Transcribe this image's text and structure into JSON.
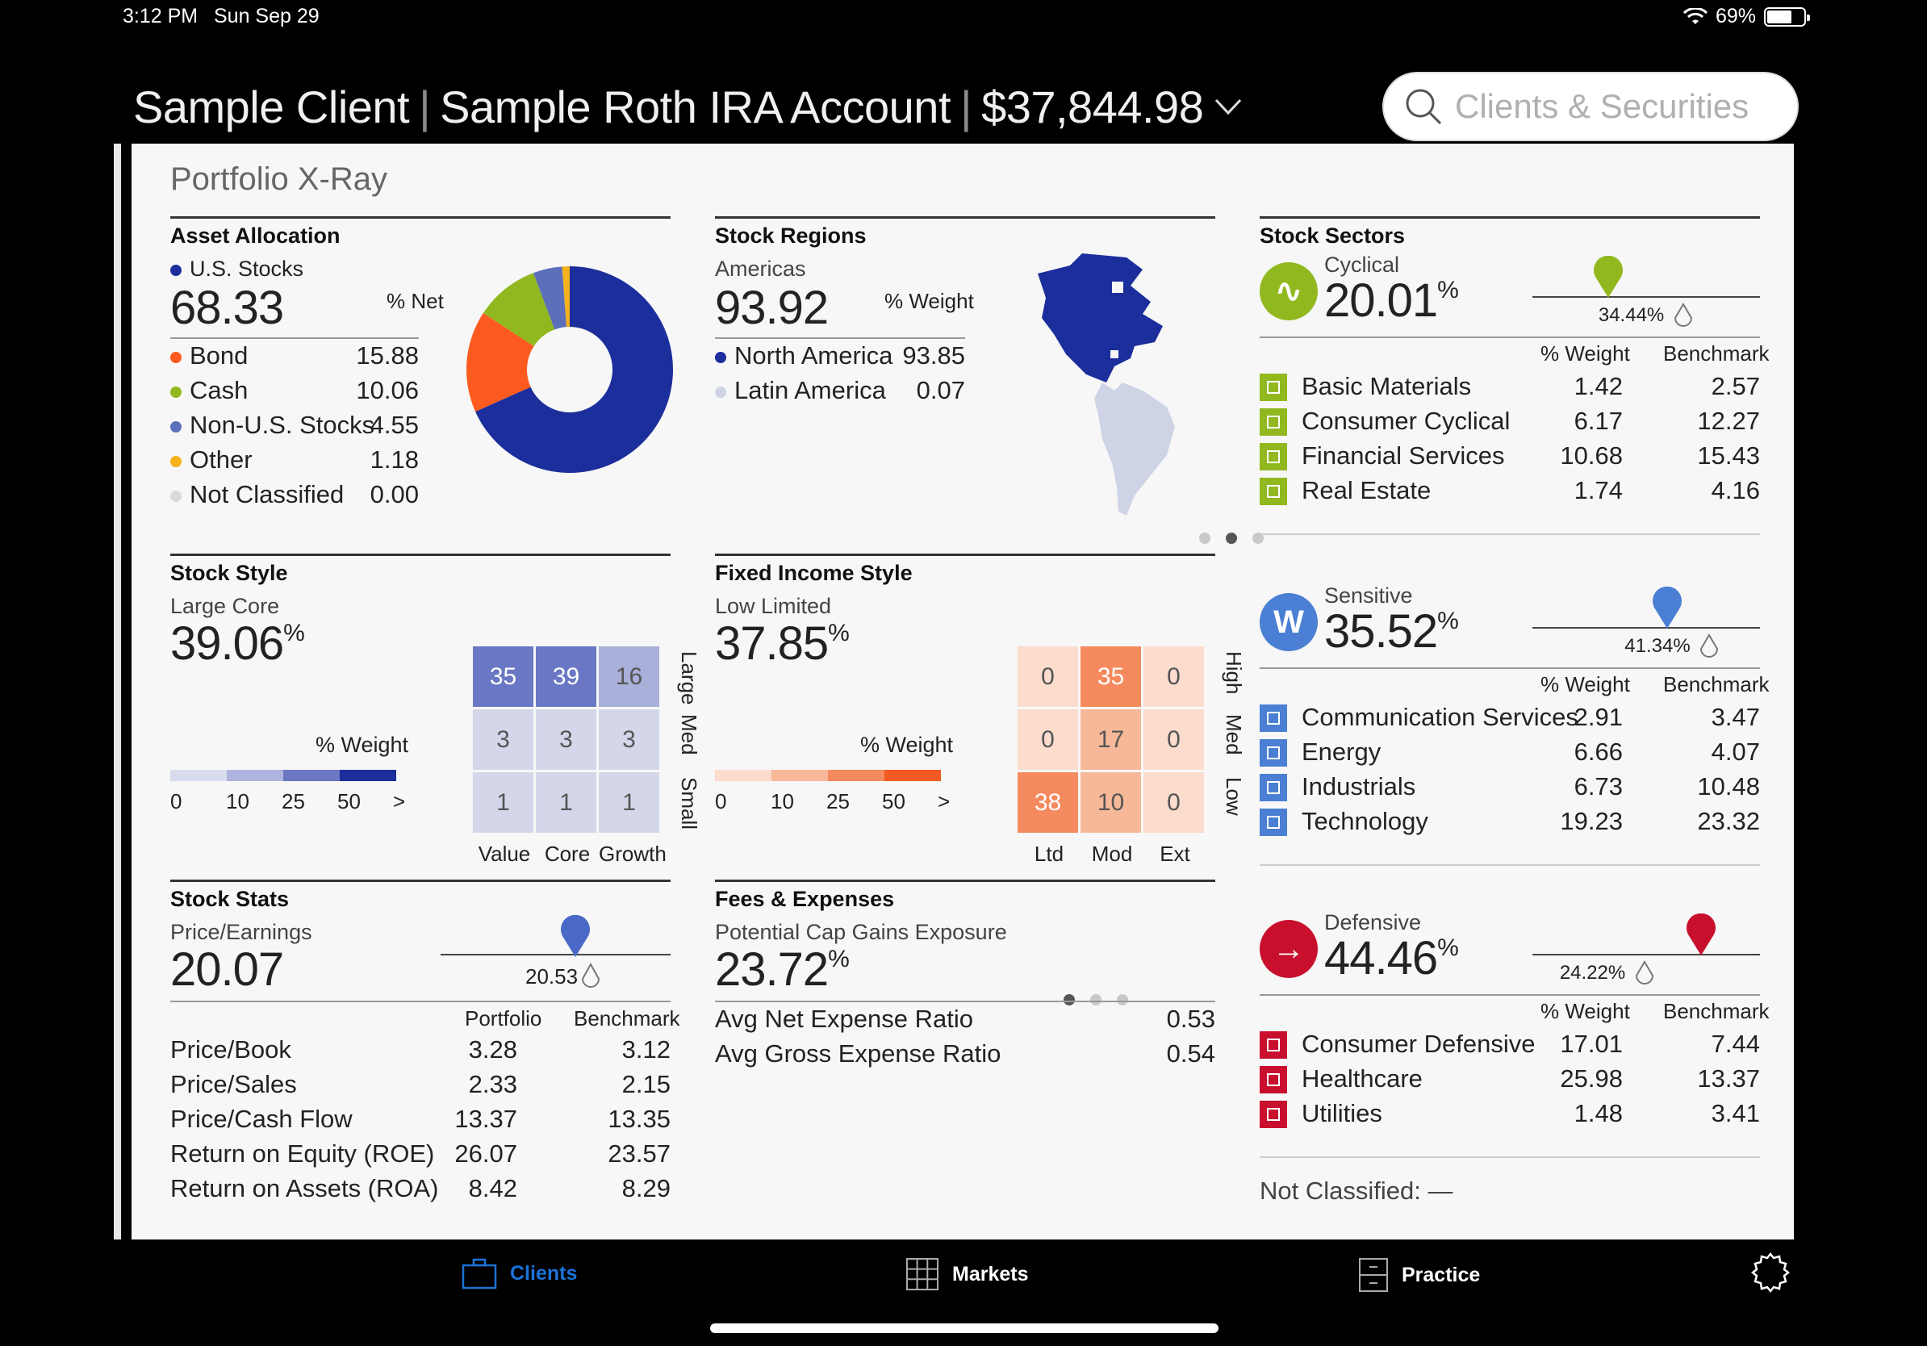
{
  "status": {
    "time": "3:12 PM",
    "date": "Sun Sep 29",
    "battery": "69%"
  },
  "header": {
    "client": "Sample Client",
    "account": "Sample Roth IRA Account",
    "value": "$37,844.98"
  },
  "search": {
    "placeholder": "Clients & Securities"
  },
  "panel_title": "Portfolio X-Ray",
  "asset_allocation": {
    "title": "Asset Allocation",
    "lead_label": "U.S. Stocks",
    "lead_value": "68.33",
    "unit": "% Net",
    "items": [
      {
        "label": "Bond",
        "value": "15.88",
        "color": "#fc5a1e"
      },
      {
        "label": "Cash",
        "value": "10.06",
        "color": "#92b81f"
      },
      {
        "label": "Non-U.S. Stocks",
        "value": "4.55",
        "color": "#5c6fba"
      },
      {
        "label": "Other",
        "value": "1.18",
        "color": "#f6b21a"
      },
      {
        "label": "Not Classified",
        "value": "0.00",
        "color": "#dadada"
      }
    ],
    "lead_color": "#1b2e9c"
  },
  "stock_regions": {
    "title": "Stock Regions",
    "lead_label": "Americas",
    "lead_value": "93.92",
    "unit": "% Weight",
    "items": [
      {
        "label": "North America",
        "value": "93.85",
        "color": "#1b2e9c"
      },
      {
        "label": "Latin America",
        "value": "0.07",
        "color": "#cfd3e6"
      }
    ]
  },
  "stock_sectors": {
    "title": "Stock Sectors",
    "col_weight": "% Weight",
    "col_bench": "Benchmark",
    "groups": [
      {
        "name": "Cyclical",
        "value": "20.01",
        "unit": "%",
        "benchmark": "34.44%",
        "color": "#92b81f",
        "rows": [
          {
            "label": "Basic Materials",
            "weight": "1.42",
            "bench": "2.57"
          },
          {
            "label": "Consumer Cyclical",
            "weight": "6.17",
            "bench": "12.27"
          },
          {
            "label": "Financial Services",
            "weight": "10.68",
            "bench": "15.43"
          },
          {
            "label": "Real Estate",
            "weight": "1.74",
            "bench": "4.16"
          }
        ]
      },
      {
        "name": "Sensitive",
        "value": "35.52",
        "unit": "%",
        "benchmark": "41.34%",
        "color": "#4a7fd4",
        "rows": [
          {
            "label": "Communication Services",
            "weight": "2.91",
            "bench": "3.47"
          },
          {
            "label": "Energy",
            "weight": "6.66",
            "bench": "4.07"
          },
          {
            "label": "Industrials",
            "weight": "6.73",
            "bench": "10.48"
          },
          {
            "label": "Technology",
            "weight": "19.23",
            "bench": "23.32"
          }
        ]
      },
      {
        "name": "Defensive",
        "value": "44.46",
        "unit": "%",
        "benchmark": "24.22%",
        "color": "#c8102e",
        "rows": [
          {
            "label": "Consumer Defensive",
            "weight": "17.01",
            "bench": "7.44"
          },
          {
            "label": "Healthcare",
            "weight": "25.98",
            "bench": "13.37"
          },
          {
            "label": "Utilities",
            "weight": "1.48",
            "bench": "3.41"
          }
        ]
      }
    ],
    "not_classified": "Not Classified: —"
  },
  "stock_style": {
    "title": "Stock Style",
    "lead_label": "Large Core",
    "lead_value": "39.06",
    "unit": "%",
    "legend_label": "% Weight",
    "legend_ticks": [
      "0",
      "10",
      "25",
      "50",
      ">"
    ],
    "grid": [
      [
        "35",
        "39",
        "16"
      ],
      [
        "3",
        "3",
        "3"
      ],
      [
        "1",
        "1",
        "1"
      ]
    ],
    "cols": [
      "Value",
      "Core",
      "Growth"
    ],
    "rows": [
      "Large",
      "Med",
      "Small"
    ]
  },
  "fixed_income": {
    "title": "Fixed Income Style",
    "lead_label": "Low Limited",
    "lead_value": "37.85",
    "unit": "%",
    "legend_label": "% Weight",
    "legend_ticks": [
      "0",
      "10",
      "25",
      "50",
      ">"
    ],
    "grid": [
      [
        "0",
        "35",
        "0"
      ],
      [
        "0",
        "17",
        "0"
      ],
      [
        "38",
        "10",
        "0"
      ]
    ],
    "cols": [
      "Ltd",
      "Mod",
      "Ext"
    ],
    "rows": [
      "High",
      "Med",
      "Low"
    ]
  },
  "stock_stats": {
    "title": "Stock Stats",
    "lead_label": "Price/Earnings",
    "lead_value": "20.07",
    "benchmark": "20.53",
    "col_portfolio": "Portfolio",
    "col_bench": "Benchmark",
    "rows": [
      {
        "label": "Price/Book",
        "p": "3.28",
        "b": "3.12"
      },
      {
        "label": "Price/Sales",
        "p": "2.33",
        "b": "2.15"
      },
      {
        "label": "Price/Cash Flow",
        "p": "13.37",
        "b": "13.35"
      },
      {
        "label": "Return on Equity (ROE)",
        "p": "26.07",
        "b": "23.57"
      },
      {
        "label": "Return on Assets (ROA)",
        "p": "8.42",
        "b": "8.29"
      }
    ]
  },
  "fees": {
    "title": "Fees & Expenses",
    "lead_label": "Potential Cap Gains Exposure",
    "lead_value": "23.72",
    "unit": "%",
    "rows": [
      {
        "label": "Avg Net Expense Ratio",
        "value": "0.53"
      },
      {
        "label": "Avg Gross Expense Ratio",
        "value": "0.54"
      }
    ]
  },
  "tabs": [
    {
      "label": "Clients",
      "icon": "briefcase-icon"
    },
    {
      "label": "Markets",
      "icon": "grid-icon"
    },
    {
      "label": "Practice",
      "icon": "file-cabinet-icon"
    }
  ],
  "colors": {
    "accent": "#1a73d8",
    "navy": "#1b2e9c"
  }
}
